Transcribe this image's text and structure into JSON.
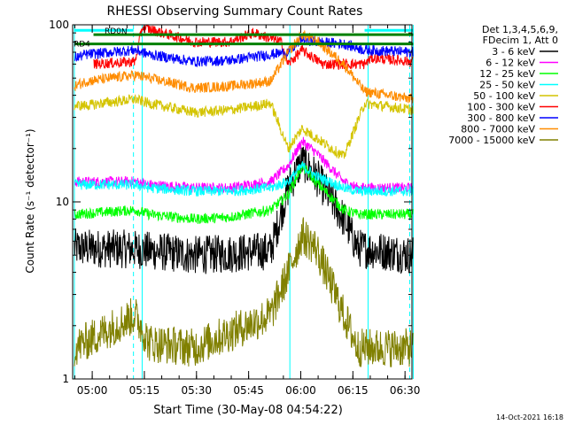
{
  "chart_data": {
    "type": "line",
    "title": "RHESSI Observing Summary Count Rates",
    "ylabel": "Count Rate (s⁻¹ detector⁻¹)",
    "xlabel": "Start Time (30-May-08 04:54:22)",
    "footer_date": "14-Oct-2021 16:18",
    "y_scale": "log",
    "ylim": [
      1,
      100
    ],
    "xlim_minutes": [
      "04:54:22",
      "06:32:00"
    ],
    "y_ticks": [
      {
        "value": 1,
        "label": "1"
      },
      {
        "value": 10,
        "label": "10"
      },
      {
        "value": 100,
        "label": "100"
      }
    ],
    "x_ticks": [
      {
        "minute": 5.633,
        "label": "05:00"
      },
      {
        "minute": 20.633,
        "label": "05:15"
      },
      {
        "minute": 35.633,
        "label": "05:30"
      },
      {
        "minute": 50.633,
        "label": "05:45"
      },
      {
        "minute": 65.633,
        "label": "06:00"
      },
      {
        "minute": 80.633,
        "label": "06:15"
      },
      {
        "minute": 95.633,
        "label": "06:30"
      }
    ],
    "legend_header": [
      "Det 1,3,4,5,6,9,",
      "FDecim 1, Att 0"
    ],
    "legend": [
      {
        "label": "3 - 6 keV",
        "color": "#000000"
      },
      {
        "label": "6 - 12 keV",
        "color": "#ff00ff"
      },
      {
        "label": "12 - 25 keV",
        "color": "#00ff00"
      },
      {
        "label": "25 - 50 keV",
        "color": "#00ffff"
      },
      {
        "label": "50 - 100 keV",
        "color": "#d4c400"
      },
      {
        "label": "100 - 300 keV",
        "color": "#ff0000"
      },
      {
        "label": "300 - 800 keV",
        "color": "#0000ff"
      },
      {
        "label": "800 - 7000 keV",
        "color": "#ff8c00"
      },
      {
        "label": "7000 - 15000 keV",
        "color": "#808000"
      }
    ],
    "flag_labels": {
      "n": "N",
      "rd0": "RD0",
      "rd4": "RD4"
    },
    "vlines_minutes": [
      0.5,
      20.0,
      62.5,
      85.0,
      98.0
    ],
    "vlines_dashed_minutes": [
      17.5,
      97.0
    ],
    "series": [
      {
        "band": "3-6",
        "color": "#000000",
        "points": [
          [
            0.5,
            5.5
          ],
          [
            18,
            5.4
          ],
          [
            22,
            5.3
          ],
          [
            35,
            5.0
          ],
          [
            45,
            5.1
          ],
          [
            57,
            5.3
          ],
          [
            62,
            12
          ],
          [
            66,
            17
          ],
          [
            70,
            14
          ],
          [
            78,
            8
          ],
          [
            82,
            5.5
          ],
          [
            98,
            5.0
          ]
        ]
      },
      {
        "band": "6-12",
        "color": "#ff00ff",
        "points": [
          [
            0.5,
            13
          ],
          [
            18,
            13
          ],
          [
            22,
            12.5
          ],
          [
            35,
            12
          ],
          [
            45,
            12
          ],
          [
            57,
            13
          ],
          [
            62,
            16
          ],
          [
            66,
            22
          ],
          [
            70,
            19
          ],
          [
            78,
            13
          ],
          [
            82,
            12
          ],
          [
            98,
            12
          ]
        ]
      },
      {
        "band": "12-25",
        "color": "#00ff00",
        "points": [
          [
            0.5,
            8.5
          ],
          [
            18,
            9
          ],
          [
            22,
            8.5
          ],
          [
            35,
            8.0
          ],
          [
            45,
            8.2
          ],
          [
            57,
            9
          ],
          [
            62,
            11
          ],
          [
            66,
            16
          ],
          [
            70,
            13
          ],
          [
            78,
            9
          ],
          [
            82,
            8.5
          ],
          [
            98,
            8.5
          ]
        ]
      },
      {
        "band": "25-50",
        "color": "#00ffff",
        "points": [
          [
            0.5,
            12.5
          ],
          [
            18,
            12.5
          ],
          [
            22,
            12
          ],
          [
            35,
            11.5
          ],
          [
            45,
            11.5
          ],
          [
            57,
            12
          ],
          [
            62,
            13
          ],
          [
            66,
            16
          ],
          [
            70,
            14
          ],
          [
            78,
            12
          ],
          [
            82,
            11.5
          ],
          [
            98,
            11.5
          ]
        ]
      },
      {
        "band": "50-100",
        "color": "#d4c400",
        "points": [
          [
            0.5,
            35
          ],
          [
            4,
            35
          ],
          [
            8,
            36
          ],
          [
            18,
            38
          ],
          [
            22,
            36
          ],
          [
            35,
            32
          ],
          [
            45,
            33
          ],
          [
            57,
            36
          ],
          [
            62,
            20
          ],
          [
            66,
            26
          ],
          [
            70,
            23
          ],
          [
            78,
            18
          ],
          [
            84,
            36
          ],
          [
            98,
            33
          ]
        ]
      },
      {
        "band": "100-300",
        "color": "#ff0000",
        "points": [
          [
            6,
            60
          ],
          [
            18,
            62
          ],
          [
            20,
            97
          ],
          [
            35,
            80
          ],
          [
            45,
            80
          ],
          [
            52,
            90
          ],
          [
            60,
            80
          ],
          [
            62,
            60
          ],
          [
            66,
            72
          ],
          [
            72,
            60
          ],
          [
            84,
            60
          ],
          [
            86,
            65
          ],
          [
            98,
            62
          ]
        ]
      },
      {
        "band": "300-800",
        "color": "#0000ff",
        "points": [
          [
            0.5,
            65
          ],
          [
            4,
            68
          ],
          [
            18,
            72
          ],
          [
            22,
            68
          ],
          [
            35,
            62
          ],
          [
            45,
            63
          ],
          [
            57,
            68
          ],
          [
            62,
            70
          ],
          [
            66,
            83
          ],
          [
            70,
            80
          ],
          [
            78,
            78
          ],
          [
            84,
            72
          ],
          [
            98,
            70
          ]
        ]
      },
      {
        "band": "800-7000",
        "color": "#ff8c00",
        "points": [
          [
            0.5,
            45
          ],
          [
            4,
            48
          ],
          [
            18,
            52
          ],
          [
            22,
            50
          ],
          [
            35,
            44
          ],
          [
            45,
            45
          ],
          [
            57,
            48
          ],
          [
            62,
            70
          ],
          [
            66,
            88
          ],
          [
            70,
            82
          ],
          [
            78,
            60
          ],
          [
            84,
            42
          ],
          [
            98,
            38
          ]
        ]
      },
      {
        "band": "7000-15000",
        "color": "#808000",
        "points": [
          [
            0.5,
            1.5
          ],
          [
            18,
            2.3
          ],
          [
            22,
            1.6
          ],
          [
            35,
            1.5
          ],
          [
            50,
            2.0
          ],
          [
            57,
            2.3
          ],
          [
            62,
            4
          ],
          [
            66,
            6.5
          ],
          [
            70,
            5.5
          ],
          [
            78,
            2.3
          ],
          [
            82,
            1.5
          ],
          [
            98,
            1.5
          ]
        ]
      }
    ],
    "flags": [
      {
        "name": "N",
        "color": "#00ffff",
        "y_value": 93,
        "segments": [
          [
            0.5,
            17.5
          ],
          [
            84,
            98
          ]
        ]
      },
      {
        "name": "RD0",
        "color": "#008000",
        "y_value": 88,
        "segments": [
          [
            6,
            98
          ]
        ]
      },
      {
        "name": "RD4",
        "color": "#008000",
        "y_value": 78,
        "segments": [
          [
            0.5,
            98
          ]
        ]
      }
    ]
  }
}
